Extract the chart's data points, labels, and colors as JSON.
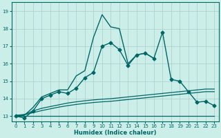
{
  "xlabel": "Humidex (Indice chaleur)",
  "ylabel": "",
  "bg_color": "#cceee8",
  "grid_color": "#aacccc",
  "line_color": "#006666",
  "xlim": [
    -0.5,
    23.5
  ],
  "ylim": [
    12.7,
    19.5
  ],
  "xticks": [
    0,
    1,
    2,
    3,
    4,
    5,
    6,
    7,
    8,
    9,
    10,
    11,
    12,
    13,
    14,
    15,
    16,
    17,
    18,
    19,
    20,
    21,
    22,
    23
  ],
  "yticks": [
    13,
    14,
    15,
    16,
    17,
    18,
    19
  ],
  "series": [
    {
      "x": [
        0,
        1,
        2,
        3,
        4,
        5,
        6,
        7,
        8,
        9,
        10,
        11,
        12,
        13,
        14,
        15,
        16,
        17,
        18,
        19,
        20,
        21,
        22,
        23
      ],
      "y": [
        13.0,
        12.9,
        13.3,
        14.0,
        14.2,
        14.4,
        14.3,
        14.6,
        15.2,
        15.5,
        17.0,
        17.2,
        16.8,
        15.9,
        16.5,
        16.6,
        16.3,
        17.8,
        15.1,
        15.0,
        14.4,
        13.8,
        13.85,
        13.6
      ],
      "marker": "D",
      "markersize": 2.5,
      "linewidth": 1.0,
      "zorder": 3
    },
    {
      "x": [
        0,
        1,
        2,
        3,
        4,
        5,
        6,
        7,
        8,
        9,
        10,
        11,
        12,
        13,
        14,
        15,
        16
      ],
      "y": [
        13.0,
        13.05,
        13.5,
        14.1,
        14.3,
        14.5,
        14.5,
        15.3,
        15.6,
        17.5,
        18.8,
        18.1,
        18.0,
        16.0,
        16.5,
        16.6,
        16.3
      ],
      "marker": null,
      "markersize": 0,
      "linewidth": 1.0,
      "zorder": 2
    },
    {
      "x": [
        0,
        1,
        2,
        3,
        4,
        5,
        6,
        7,
        8,
        9,
        10,
        11,
        12,
        13,
        14,
        15,
        16,
        17,
        18,
        19,
        20,
        21,
        22,
        23
      ],
      "y": [
        13.05,
        13.1,
        13.3,
        13.45,
        13.55,
        13.65,
        13.75,
        13.82,
        13.88,
        13.93,
        13.97,
        14.0,
        14.05,
        14.1,
        14.15,
        14.2,
        14.25,
        14.3,
        14.35,
        14.4,
        14.45,
        14.5,
        14.55,
        14.55
      ],
      "marker": null,
      "markersize": 0,
      "linewidth": 0.9,
      "zorder": 2
    },
    {
      "x": [
        0,
        1,
        2,
        3,
        4,
        5,
        6,
        7,
        8,
        9,
        10,
        11,
        12,
        13,
        14,
        15,
        16,
        17,
        18,
        19,
        20,
        21,
        22,
        23
      ],
      "y": [
        13.02,
        13.08,
        13.2,
        13.32,
        13.42,
        13.52,
        13.6,
        13.67,
        13.73,
        13.78,
        13.82,
        13.85,
        13.9,
        13.95,
        14.0,
        14.05,
        14.1,
        14.15,
        14.2,
        14.25,
        14.3,
        14.35,
        14.4,
        14.4
      ],
      "marker": null,
      "markersize": 0,
      "linewidth": 0.9,
      "zorder": 2
    },
    {
      "x": [
        0,
        1,
        2,
        3,
        4,
        5,
        6,
        7,
        8,
        9,
        10,
        11,
        12,
        13,
        14,
        15,
        16,
        17,
        18,
        19,
        20,
        21,
        22,
        23
      ],
      "y": [
        13.0,
        13.0,
        13.0,
        13.0,
        13.0,
        13.0,
        13.0,
        13.0,
        13.0,
        13.0,
        13.0,
        13.0,
        13.0,
        13.0,
        13.0,
        13.0,
        13.0,
        13.0,
        13.0,
        13.0,
        13.0,
        13.0,
        13.0,
        13.0
      ],
      "marker": null,
      "markersize": 0,
      "linewidth": 0.9,
      "zorder": 2
    }
  ]
}
